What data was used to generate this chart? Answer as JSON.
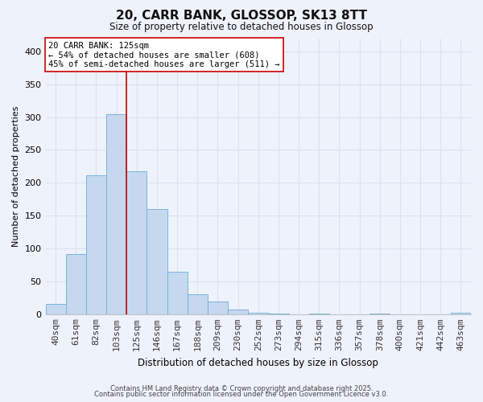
{
  "title": "20, CARR BANK, GLOSSOP, SK13 8TT",
  "subtitle": "Size of property relative to detached houses in Glossop",
  "xlabel": "Distribution of detached houses by size in Glossop",
  "ylabel": "Number of detached properties",
  "bin_labels": [
    "40sqm",
    "61sqm",
    "82sqm",
    "103sqm",
    "125sqm",
    "146sqm",
    "167sqm",
    "188sqm",
    "209sqm",
    "230sqm",
    "252sqm",
    "273sqm",
    "294sqm",
    "315sqm",
    "336sqm",
    "357sqm",
    "378sqm",
    "400sqm",
    "421sqm",
    "442sqm",
    "463sqm"
  ],
  "bin_values": [
    16,
    91,
    212,
    305,
    218,
    160,
    64,
    30,
    19,
    7,
    2,
    1,
    0,
    1,
    0,
    0,
    1,
    0,
    0,
    0,
    2
  ],
  "bar_color": "#c5d8f0",
  "bar_edge_color": "#6baed6",
  "vline_x_index": 4,
  "vline_color": "#cc0000",
  "ylim": [
    0,
    420
  ],
  "yticks": [
    0,
    50,
    100,
    150,
    200,
    250,
    300,
    350,
    400
  ],
  "annotation_title": "20 CARR BANK: 125sqm",
  "annotation_line1": "← 54% of detached houses are smaller (608)",
  "annotation_line2": "45% of semi-detached houses are larger (511) →",
  "annotation_box_facecolor": "#ffffff",
  "annotation_box_edgecolor": "#cc0000",
  "background_color": "#eef2fb",
  "grid_color": "#d8e2f0",
  "footer1": "Contains HM Land Registry data © Crown copyright and database right 2025.",
  "footer2": "Contains public sector information licensed under the Open Government Licence v3.0."
}
